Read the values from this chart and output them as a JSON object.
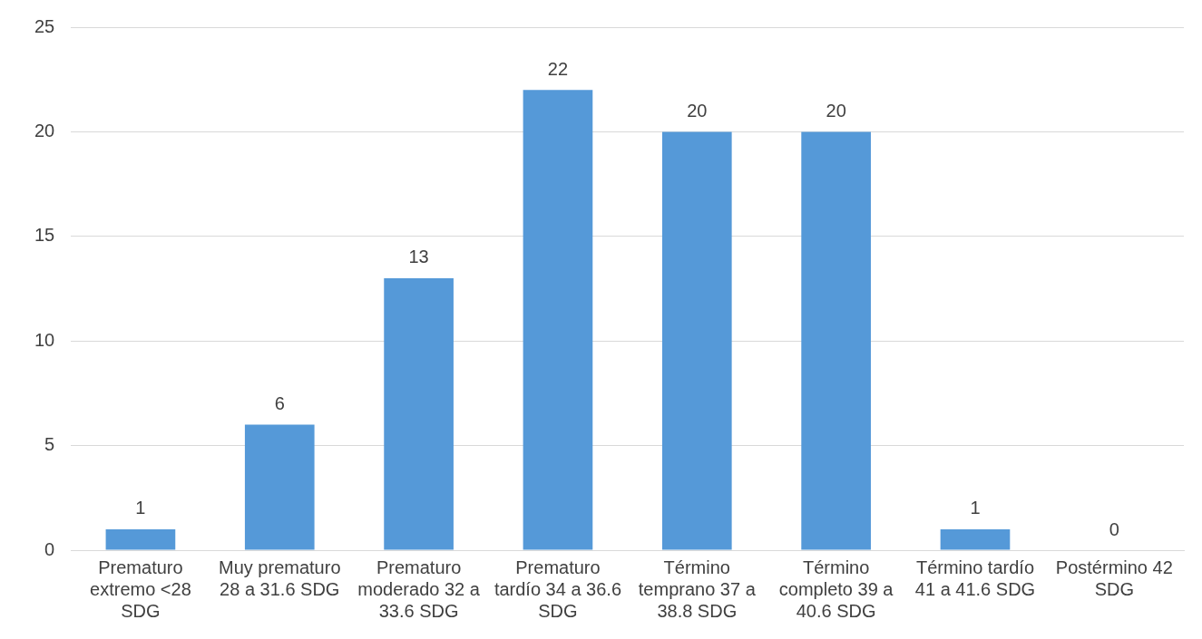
{
  "chart_data": {
    "type": "bar",
    "categories": [
      "Prematuro extremo <28 SDG",
      "Muy prematuro 28 a 31.6 SDG",
      "Prematuro moderado 32 a 33.6 SDG",
      "Prematuro tardío 34 a 36.6 SDG",
      "Término temprano 37 a 38.8 SDG",
      "Término completo 39 a 40.6 SDG",
      "Término tardío 41 a 41.6 SDG",
      "Postérmino 42 SDG"
    ],
    "values": [
      1,
      6,
      13,
      22,
      20,
      20,
      1,
      0
    ],
    "color": "#5599d8",
    "ylim": [
      0,
      25
    ],
    "yticks": [
      0,
      5,
      10,
      15,
      20,
      25
    ],
    "grid": "y",
    "data_labels": true,
    "legend": false
  }
}
